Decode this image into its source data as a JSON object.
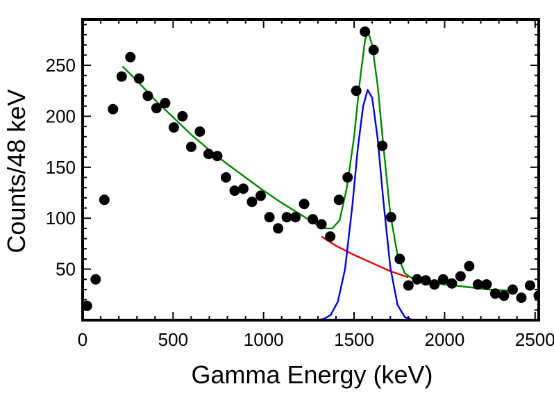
{
  "chart_data": {
    "type": "scatter",
    "title": "",
    "xlabel": "Gamma Energy (keV)",
    "ylabel": "Counts/48 keV",
    "xlim": [
      0,
      2520
    ],
    "ylim": [
      0,
      295
    ],
    "grid": false,
    "legend": "none",
    "xticks": [
      0,
      500,
      1000,
      1500,
      2000,
      2500
    ],
    "xtick_labels": [
      "0",
      "500",
      "1000",
      "1500",
      "2000",
      "2500"
    ],
    "yticks": [
      50,
      100,
      150,
      200,
      250
    ],
    "ytick_labels": [
      "50",
      "100",
      "150",
      "200",
      "250"
    ],
    "points": {
      "color": "#000000",
      "x": [
        24,
        72,
        120,
        168,
        216,
        264,
        312,
        360,
        408,
        456,
        504,
        552,
        600,
        648,
        696,
        744,
        792,
        840,
        888,
        936,
        984,
        1032,
        1080,
        1128,
        1176,
        1224,
        1272,
        1320,
        1368,
        1416,
        1464,
        1512,
        1560,
        1608,
        1656,
        1704,
        1752,
        1800,
        1848,
        1896,
        1944,
        1992,
        2040,
        2088,
        2136,
        2184,
        2232,
        2280,
        2328,
        2376,
        2424,
        2472,
        2520
      ],
      "y": [
        14,
        40,
        118,
        207,
        239,
        258,
        237,
        220,
        208,
        213,
        189,
        200,
        170,
        185,
        163,
        161,
        140,
        127,
        129,
        116,
        122,
        101,
        90,
        101,
        101,
        114,
        99,
        94,
        82,
        118,
        140,
        225,
        283,
        265,
        171,
        101,
        60,
        34,
        40,
        39,
        35,
        40,
        36,
        43,
        53,
        35,
        35,
        26,
        24,
        30,
        22,
        34,
        24
      ]
    },
    "series": [
      {
        "color": "#dd0000",
        "x": [
          1320,
          1400,
          1500,
          1600,
          1700,
          1800
        ],
        "y": [
          82,
          73,
          64,
          56,
          48,
          42
        ]
      },
      {
        "color": "#0000dd",
        "x": [
          1290,
          1330,
          1370,
          1410,
          1450,
          1490,
          1520,
          1550,
          1575,
          1600,
          1630,
          1660,
          1700,
          1740,
          1780,
          1820,
          1860
        ],
        "y": [
          0,
          1,
          5,
          18,
          50,
          112,
          168,
          210,
          226,
          218,
          178,
          120,
          52,
          15,
          3,
          0.5,
          0
        ]
      },
      {
        "color": "#008800",
        "x": [
          220,
          300,
          400,
          500,
          600,
          700,
          800,
          900,
          1000,
          1100,
          1200,
          1300,
          1340,
          1380,
          1420,
          1460,
          1500,
          1530,
          1560,
          1575,
          1600,
          1630,
          1660,
          1700,
          1740,
          1780,
          1820,
          1880,
          1950,
          2050,
          2150,
          2250,
          2350,
          2400
        ],
        "y": [
          249,
          235,
          216,
          199,
          182,
          167,
          153,
          140,
          127,
          115,
          104,
          93,
          90,
          90,
          98,
          130,
          180,
          232,
          274,
          284,
          270,
          230,
          174,
          104,
          64,
          46,
          41,
          38,
          36,
          34,
          32,
          30,
          29,
          28
        ]
      }
    ]
  }
}
